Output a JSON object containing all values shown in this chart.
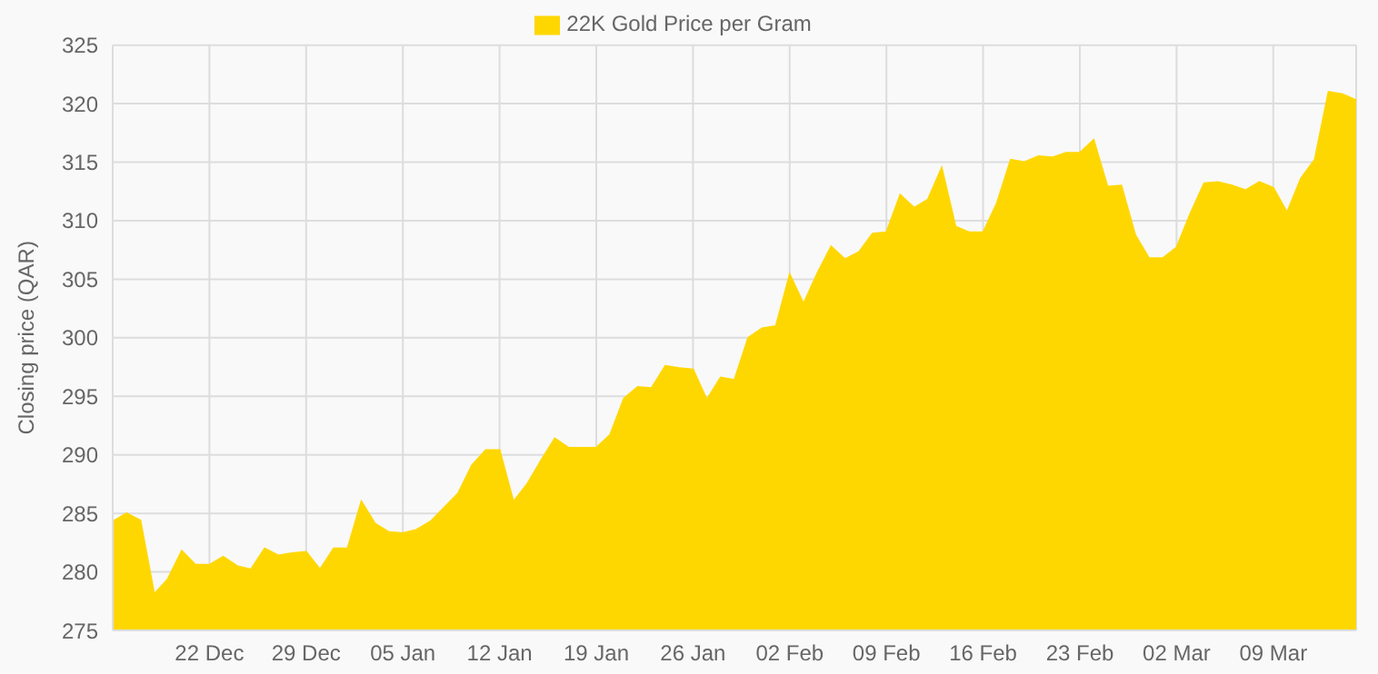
{
  "chart_data": {
    "type": "area",
    "ylabel": "Closing price (QAR)",
    "categories": [
      null,
      null,
      null,
      null,
      null,
      null,
      null,
      "22 Dec",
      null,
      null,
      null,
      null,
      null,
      null,
      "29 Dec",
      null,
      null,
      null,
      null,
      null,
      null,
      "05 Jan",
      null,
      null,
      null,
      null,
      null,
      null,
      "12 Jan",
      null,
      null,
      null,
      null,
      null,
      null,
      "19 Jan",
      null,
      null,
      null,
      null,
      null,
      null,
      "26 Jan",
      null,
      null,
      null,
      null,
      null,
      null,
      "02 Feb",
      null,
      null,
      null,
      null,
      null,
      null,
      "09 Feb",
      null,
      null,
      null,
      null,
      null,
      null,
      "16 Feb",
      null,
      null,
      null,
      null,
      null,
      null,
      "23 Feb",
      null,
      null,
      null,
      null,
      null,
      null,
      "02 Mar",
      null,
      null,
      null,
      null,
      null,
      null,
      "09 Mar",
      null,
      null,
      null,
      null,
      null,
      null
    ],
    "series": [
      {
        "name": "22K Gold Price per Gram",
        "color": "#ffd700",
        "values": [
          284.3,
          285.0,
          284.4,
          278.1,
          279.4,
          281.8,
          280.6,
          280.6,
          281.3,
          280.5,
          280.2,
          282.0,
          281.4,
          281.6,
          281.7,
          280.2,
          282.0,
          282.0,
          286.0,
          284.1,
          283.4,
          283.3,
          283.6,
          284.3,
          285.5,
          286.7,
          289.1,
          290.4,
          290.4,
          286.0,
          287.5,
          289.5,
          291.4,
          290.6,
          290.6,
          290.6,
          291.7,
          294.8,
          295.8,
          295.7,
          297.6,
          297.4,
          297.3,
          294.7,
          296.6,
          296.4,
          300.0,
          300.8,
          301.0,
          305.4,
          302.9,
          305.5,
          307.8,
          306.7,
          307.3,
          308.9,
          309.0,
          312.2,
          311.1,
          311.8,
          314.5,
          309.5,
          309.0,
          309.0,
          311.5,
          315.2,
          315.0,
          315.5,
          315.4,
          315.8,
          315.8,
          316.9,
          312.9,
          313.0,
          308.8,
          306.8,
          306.8,
          307.7,
          310.6,
          313.2,
          313.3,
          313.0,
          312.6,
          313.3,
          312.8,
          310.7,
          313.6,
          315.2,
          321.0,
          320.8,
          320.3
        ]
      }
    ],
    "ylim": [
      275,
      325
    ],
    "yticks": [
      275,
      280,
      285,
      290,
      295,
      300,
      305,
      310,
      315,
      320,
      325
    ],
    "grid": true,
    "legend": "top"
  }
}
